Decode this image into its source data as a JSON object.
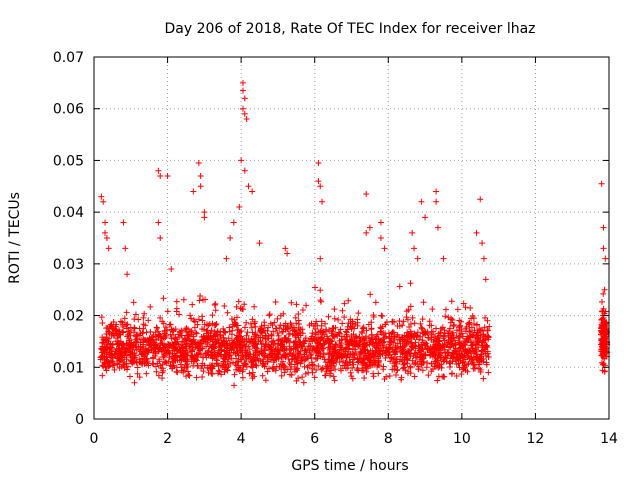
{
  "chart_data": {
    "type": "scatter",
    "title": "Day 206 of 2018, Rate Of TEC Index for receiver lhaz",
    "xlabel": "GPS time / hours",
    "ylabel": "ROTI / TECUs",
    "xlim": [
      0,
      14
    ],
    "ylim": [
      0,
      0.07
    ],
    "x_ticks": [
      0,
      2,
      4,
      6,
      8,
      10,
      12,
      14
    ],
    "x_tick_labels": [
      "0",
      "2",
      "4",
      "6",
      "8",
      "10",
      "12",
      "14"
    ],
    "y_ticks": [
      0,
      0.01,
      0.02,
      0.03,
      0.04,
      0.05,
      0.06,
      0.07
    ],
    "y_tick_labels": [
      "0",
      "0.01",
      "0.02",
      "0.03",
      "0.04",
      "0.05",
      "0.06",
      "0.07"
    ],
    "grid": true,
    "grid_style": "dotted",
    "marker": "+",
    "series_color": "#ff0000",
    "series": [
      {
        "name": "ROTI",
        "segments": [
          {
            "x_start": 0.18,
            "x_end": 10.75,
            "y_base": 0.0135,
            "y_spread": 0.0075,
            "y_min": 0.0035
          },
          {
            "x_start": 13.78,
            "x_end": 13.95,
            "y_base": 0.0155,
            "y_spread": 0.0075,
            "y_min": 0.0075
          }
        ],
        "point_count": 2600,
        "points": [
          {
            "x": 0.2,
            "y": 0.043
          },
          {
            "x": 0.25,
            "y": 0.042
          },
          {
            "x": 0.3,
            "y": 0.038
          },
          {
            "x": 0.3,
            "y": 0.036
          },
          {
            "x": 0.35,
            "y": 0.035
          },
          {
            "x": 0.4,
            "y": 0.033
          },
          {
            "x": 0.8,
            "y": 0.038
          },
          {
            "x": 0.85,
            "y": 0.033
          },
          {
            "x": 0.9,
            "y": 0.028
          },
          {
            "x": 1.75,
            "y": 0.048
          },
          {
            "x": 1.8,
            "y": 0.047
          },
          {
            "x": 1.75,
            "y": 0.038
          },
          {
            "x": 1.8,
            "y": 0.035
          },
          {
            "x": 2.0,
            "y": 0.047
          },
          {
            "x": 2.1,
            "y": 0.029
          },
          {
            "x": 2.85,
            "y": 0.0495
          },
          {
            "x": 2.9,
            "y": 0.047
          },
          {
            "x": 2.9,
            "y": 0.045
          },
          {
            "x": 3.0,
            "y": 0.04
          },
          {
            "x": 3.0,
            "y": 0.039
          },
          {
            "x": 2.7,
            "y": 0.044
          },
          {
            "x": 3.6,
            "y": 0.031
          },
          {
            "x": 3.7,
            "y": 0.035
          },
          {
            "x": 3.8,
            "y": 0.038
          },
          {
            "x": 3.95,
            "y": 0.041
          },
          {
            "x": 4.0,
            "y": 0.05
          },
          {
            "x": 4.05,
            "y": 0.065
          },
          {
            "x": 4.05,
            "y": 0.0635
          },
          {
            "x": 4.1,
            "y": 0.062
          },
          {
            "x": 4.05,
            "y": 0.06
          },
          {
            "x": 4.1,
            "y": 0.059
          },
          {
            "x": 4.15,
            "y": 0.058
          },
          {
            "x": 4.1,
            "y": 0.048
          },
          {
            "x": 4.2,
            "y": 0.045
          },
          {
            "x": 4.3,
            "y": 0.044
          },
          {
            "x": 4.5,
            "y": 0.034
          },
          {
            "x": 5.2,
            "y": 0.033
          },
          {
            "x": 5.25,
            "y": 0.032
          },
          {
            "x": 6.1,
            "y": 0.0495
          },
          {
            "x": 6.1,
            "y": 0.046
          },
          {
            "x": 6.15,
            "y": 0.045
          },
          {
            "x": 6.2,
            "y": 0.042
          },
          {
            "x": 6.15,
            "y": 0.031
          },
          {
            "x": 7.4,
            "y": 0.0435
          },
          {
            "x": 7.4,
            "y": 0.036
          },
          {
            "x": 7.5,
            "y": 0.037
          },
          {
            "x": 7.8,
            "y": 0.038
          },
          {
            "x": 7.8,
            "y": 0.035
          },
          {
            "x": 7.9,
            "y": 0.033
          },
          {
            "x": 8.65,
            "y": 0.036
          },
          {
            "x": 8.7,
            "y": 0.033
          },
          {
            "x": 8.8,
            "y": 0.031
          },
          {
            "x": 8.9,
            "y": 0.042
          },
          {
            "x": 9.0,
            "y": 0.039
          },
          {
            "x": 9.3,
            "y": 0.044
          },
          {
            "x": 9.3,
            "y": 0.042
          },
          {
            "x": 9.35,
            "y": 0.037
          },
          {
            "x": 9.5,
            "y": 0.031
          },
          {
            "x": 10.4,
            "y": 0.036
          },
          {
            "x": 10.5,
            "y": 0.0425
          },
          {
            "x": 10.55,
            "y": 0.034
          },
          {
            "x": 10.6,
            "y": 0.031
          },
          {
            "x": 10.65,
            "y": 0.027
          },
          {
            "x": 13.8,
            "y": 0.0455
          },
          {
            "x": 13.85,
            "y": 0.037
          },
          {
            "x": 13.85,
            "y": 0.033
          },
          {
            "x": 13.9,
            "y": 0.031
          },
          {
            "x": 13.88,
            "y": 0.025
          }
        ]
      }
    ]
  }
}
